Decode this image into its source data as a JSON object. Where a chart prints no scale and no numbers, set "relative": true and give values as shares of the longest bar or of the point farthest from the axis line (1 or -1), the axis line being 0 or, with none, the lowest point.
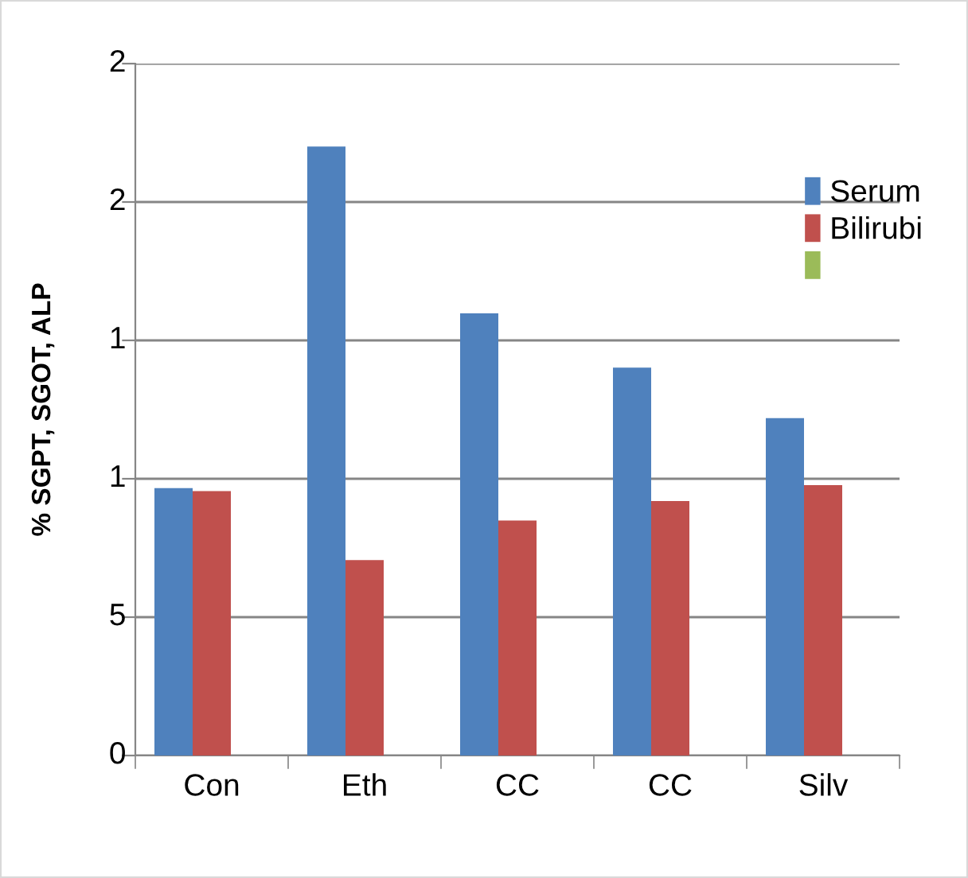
{
  "chart_data": {
    "type": "bar",
    "ylabel": "% SGPT, SGOT, ALP",
    "categories": [
      "Con",
      "Eth",
      "CC",
      "CC",
      "Silv"
    ],
    "series": [
      {
        "name": "Serum",
        "color": "#4f81bd",
        "values": [
          0.439,
          1,
          0.726,
          0.637,
          0.554
        ]
      },
      {
        "name": "Bilirubi",
        "color": "#c0504d",
        "values": [
          0.434,
          0.321,
          0.386,
          0.418,
          0.444
        ]
      },
      {
        "color": "#9bbb59",
        "values": [
          null,
          null,
          null,
          null,
          null
        ]
      }
    ],
    "relative": true,
    "annotations": [
      "2",
      "2",
      "1",
      "1",
      "5",
      "0"
    ],
    "grid": "y",
    "legend": "right"
  }
}
